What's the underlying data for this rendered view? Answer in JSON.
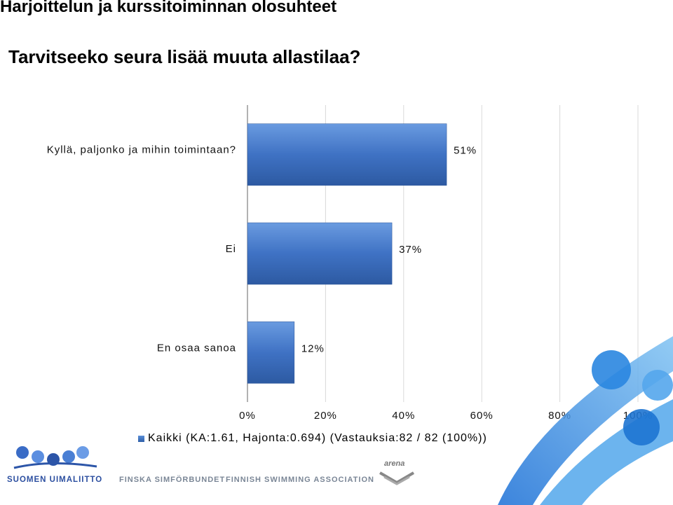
{
  "page": {
    "title": "Harjoittelun ja kurssitoiminnan olosuhteet",
    "question": "Tarvitseeko seura lisää muuta allastilaa?"
  },
  "chart_data": {
    "type": "bar",
    "orientation": "horizontal",
    "categories": [
      "Kyllä, paljonko ja mihin toimintaan?",
      "Ei",
      "En osaa sanoa"
    ],
    "series": [
      {
        "name": "Kaikki (KA:1.61, Hajonta:0.694) (Vastauksia:82 / 82 (100%))",
        "values": [
          51,
          37,
          12
        ]
      }
    ],
    "value_labels": [
      "51%",
      "37%",
      "12%"
    ],
    "xlim": [
      0,
      100
    ],
    "x_ticks": [
      "0%",
      "20%",
      "40%",
      "60%",
      "80%",
      "100%"
    ],
    "grid": true,
    "legend_position": "bottom",
    "bar_color": "#3d6fc0"
  },
  "legend": {
    "label": "Kaikki (KA:1.61, Hajonta:0.694) (Vastauksia:82 / 82 (100%))"
  },
  "footer": {
    "org_fi": "SUOMEN UIMALIITTO",
    "org_sv": "FINSKA SIMFÖRBUNDET",
    "org_en": "FINNISH SWIMMING ASSOCIATION",
    "sponsor": "arena"
  }
}
